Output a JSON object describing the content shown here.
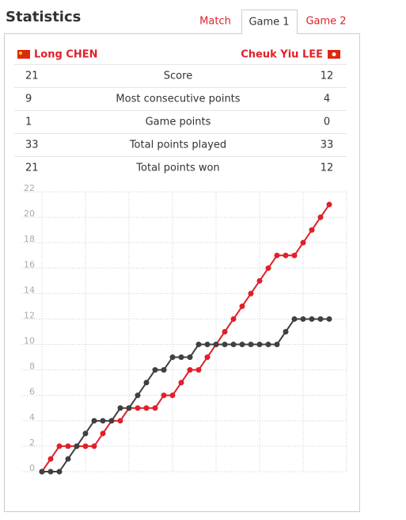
{
  "header": {
    "title": "Statistics"
  },
  "tabs": [
    "Match",
    "Game 1",
    "Game 2"
  ],
  "players": [
    "Long CHEN",
    "Cheuk Yiu LEE"
  ],
  "table": {
    "rows": [
      [
        21,
        "Score",
        12
      ],
      [
        9,
        "Most consecutive points",
        4
      ],
      [
        1,
        "Game points",
        0
      ],
      [
        33,
        "Total points played",
        33
      ],
      [
        21,
        "Total points won",
        12
      ]
    ]
  },
  "chart_data": {
    "type": "line",
    "x": [
      0,
      1,
      2,
      3,
      4,
      5,
      6,
      7,
      8,
      9,
      10,
      11,
      12,
      13,
      14,
      15,
      16,
      17,
      18,
      19,
      20,
      21,
      22,
      23,
      24,
      25,
      26,
      27,
      28,
      29,
      30,
      31,
      32,
      33
    ],
    "series": [
      {
        "color": "#e0202a",
        "values": [
          0,
          1,
          2,
          2,
          2,
          2,
          2,
          3,
          4,
          4,
          5,
          5,
          5,
          5,
          6,
          6,
          7,
          8,
          8,
          9,
          10,
          11,
          12,
          13,
          14,
          15,
          16,
          17,
          17,
          17,
          18,
          19,
          20,
          21
        ]
      },
      {
        "color": "#404040",
        "values": [
          0,
          0,
          0,
          1,
          2,
          3,
          4,
          4,
          4,
          5,
          5,
          6,
          7,
          8,
          8,
          9,
          9,
          9,
          10,
          10,
          10,
          10,
          10,
          10,
          10,
          10,
          10,
          10,
          11,
          12,
          12,
          12,
          12,
          12
        ]
      }
    ],
    "xlim": [
      0,
      35
    ],
    "xticks": [
      0,
      5,
      10,
      15,
      20,
      25,
      30,
      35
    ],
    "ylim": [
      0,
      22
    ],
    "yticks": [
      0,
      2,
      4,
      6,
      8,
      10,
      12,
      14,
      16,
      18,
      20,
      22
    ],
    "grid": true
  }
}
